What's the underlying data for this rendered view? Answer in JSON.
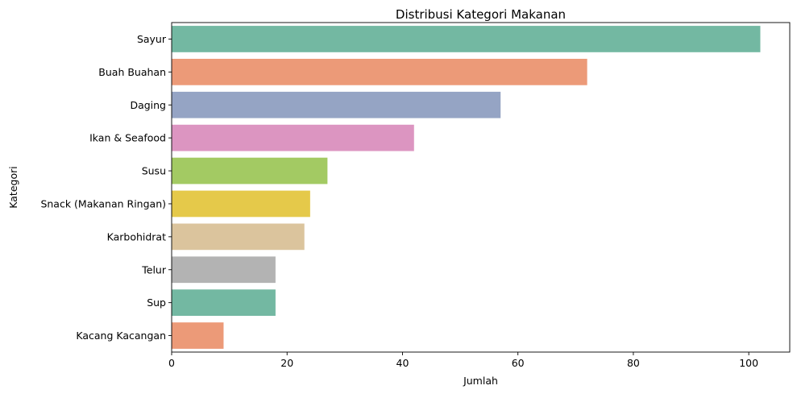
{
  "chart_data": {
    "type": "bar",
    "orientation": "horizontal",
    "title": "Distribusi Kategori Makanan",
    "xlabel": "Jumlah",
    "ylabel": "Kategori",
    "categories": [
      "Sayur",
      "Buah Buahan",
      "Daging",
      "Ikan & Seafood",
      "Susu",
      "Snack (Makanan Ringan)",
      "Karbohidrat",
      "Telur",
      "Sup",
      "Kacang Kacangan"
    ],
    "values": [
      102,
      72,
      57,
      42,
      27,
      24,
      23,
      18,
      18,
      9
    ],
    "colors": [
      "#73b8a2",
      "#ec9a78",
      "#95a4c4",
      "#dc95c1",
      "#a3ca63",
      "#e5c94a",
      "#dbc49d",
      "#b3b3b3",
      "#73b8a2",
      "#ec9a78"
    ],
    "xlim": [
      0,
      107.1
    ],
    "xticks": [
      0,
      20,
      40,
      60,
      80,
      100
    ],
    "xtick_labels": [
      "0",
      "20",
      "40",
      "60",
      "80",
      "100"
    ],
    "grid": false,
    "legend": "none"
  }
}
